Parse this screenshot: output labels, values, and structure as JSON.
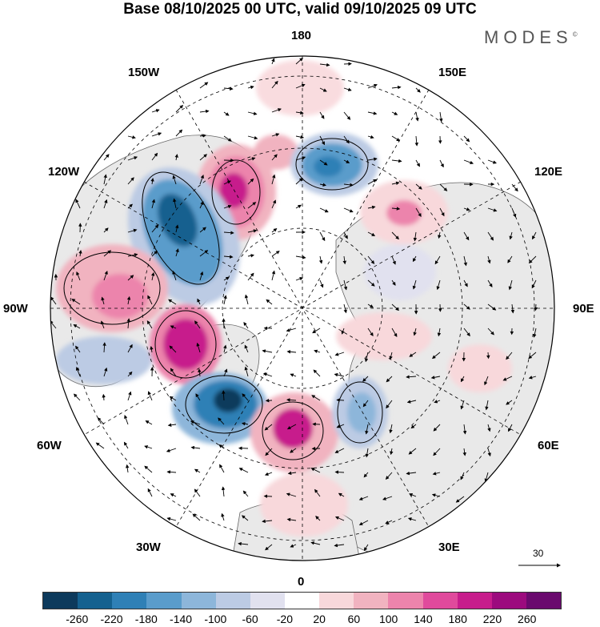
{
  "title": "Base 08/10/2025 00 UTC, valid 09/10/2025 09 UTC",
  "brand": "MODES",
  "brand_mark": "©",
  "longitude_labels": {
    "lon_180": "180",
    "lon_150w": "150W",
    "lon_150e": "150E",
    "lon_120w": "120W",
    "lon_120e": "120E",
    "lon_90w": "90W",
    "lon_90e": "90E",
    "lon_60w": "60W",
    "lon_60e": "60E",
    "lon_30w": "30W",
    "lon_30e": "30E",
    "lon_0": "0"
  },
  "reference_vector": "30",
  "colorbar": {
    "colors": [
      "#0d3a5c",
      "#15618f",
      "#2f80b6",
      "#5a9ccb",
      "#8db6da",
      "#bccbe4",
      "#e1e1ef",
      "#ffffff",
      "#f8d8db",
      "#f1b3c0",
      "#ec84ac",
      "#e04a9c",
      "#c71d8c",
      "#9c0b7e",
      "#6a0a6e"
    ],
    "ticks": [
      "-260",
      "-220",
      "-180",
      "-140",
      "-100",
      "-60",
      "-20",
      "20",
      "60",
      "100",
      "140",
      "180",
      "220",
      "260"
    ]
  },
  "colors": {
    "land": "#e9e9e9",
    "ocean": "#ffffff"
  }
}
